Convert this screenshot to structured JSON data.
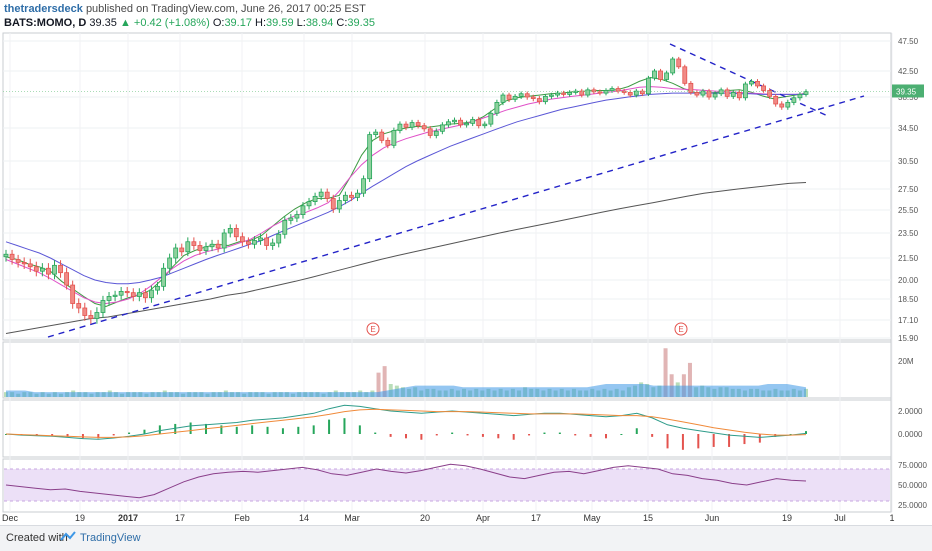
{
  "header": {
    "user": "thetradersdeck",
    "published": "published on TradingView.com, June 26, 2017 00:25 EST",
    "symbol": "BATS:MOMO, D",
    "last": "39.35",
    "change": "+0.42 (+1.08%)",
    "o_label": "O:",
    "o_val": "39.17",
    "h_label": "H:",
    "h_val": "39.59",
    "l_label": "L:",
    "l_val": "38.94",
    "c_label": "C:",
    "c_val": "39.35"
  },
  "footer": {
    "created": "Created with",
    "brand": "TradingView"
  },
  "colors": {
    "up": "#26a65b",
    "down": "#e4534e",
    "sma_fast": "#3d9a42",
    "sma_mid": "#e050c8",
    "sma_slow": "#5b57d6",
    "sma_long": "#555555",
    "trend": "#2323c8",
    "vol_bar": "#a8d5a8",
    "vol_bar_down": "#d9a3a3",
    "vol_ma": "#3d97e6",
    "macd": "#2e9c8a",
    "signal": "#f08a3a",
    "rsi": "#8a3f8a",
    "rsi_band": "#ece0f7"
  },
  "chart_data": {
    "type": "line",
    "title": "",
    "price_axis": {
      "ticks": [
        "47.50",
        "42.50",
        "38.50",
        "34.50",
        "30.50",
        "27.50",
        "25.50",
        "23.50",
        "21.50",
        "20.00",
        "18.50",
        "17.10",
        "15.90"
      ],
      "ylim": [
        15.9,
        47.5
      ],
      "last_label": "39.35"
    },
    "x_ticks": [
      "Dec",
      "19",
      "2017",
      "17",
      "Feb",
      "14",
      "Mar",
      "20",
      "Apr",
      "17",
      "May",
      "15",
      "Jun",
      "19",
      "Jul",
      "1"
    ],
    "price": [
      21.8,
      21.4,
      21.2,
      21.1,
      20.9,
      20.6,
      20.8,
      20.4,
      21.0,
      20.5,
      19.6,
      18.2,
      17.9,
      17.4,
      17.2,
      17.6,
      18.4,
      18.7,
      18.8,
      19.1,
      19.0,
      18.7,
      19.0,
      18.6,
      19.2,
      19.5,
      20.8,
      21.5,
      22.3,
      22.0,
      22.8,
      22.5,
      22.1,
      22.4,
      22.6,
      22.3,
      23.5,
      23.9,
      23.2,
      22.8,
      22.6,
      22.9,
      23.1,
      22.5,
      22.7,
      23.4,
      24.6,
      24.8,
      25.1,
      25.9,
      26.3,
      26.8,
      27.2,
      26.6,
      25.6,
      26.4,
      26.9,
      26.7,
      27.1,
      28.6,
      33.7,
      34.0,
      33.0,
      32.4,
      34.2,
      35.0,
      34.6,
      35.2,
      34.8,
      34.4,
      33.6,
      34.1,
      34.9,
      35.3,
      35.5,
      34.9,
      35.1,
      35.6,
      34.8,
      35.0,
      36.4,
      37.8,
      38.8,
      38.2,
      38.6,
      39.0,
      38.5,
      38.3,
      37.9,
      38.6,
      38.8,
      39.1,
      38.9,
      39.2,
      39.4,
      38.8,
      39.6,
      39.3,
      39.1,
      39.5,
      39.8,
      39.4,
      39.2,
      38.8,
      39.4,
      39.0,
      41.4,
      42.5,
      41.2,
      42.2,
      44.5,
      43.2,
      40.6,
      39.2,
      38.8,
      39.4,
      38.5,
      39.0,
      39.6,
      38.6,
      39.2,
      38.4,
      40.5,
      40.9,
      40.2,
      39.5,
      38.6,
      37.6,
      37.2,
      37.8,
      38.4,
      38.9,
      39.35
    ],
    "series": [
      {
        "values": [
          21.6,
          21.4,
          21.1,
          20.9,
          20.6,
          19.9,
          19.3,
          18.7,
          18.2,
          18.0,
          18.3,
          18.6,
          18.8,
          19.2,
          20.0,
          20.9,
          21.7,
          22.1,
          22.4,
          22.6,
          22.5,
          22.8,
          22.9,
          23.3,
          24.1,
          24.9,
          25.6,
          26.2,
          26.6,
          26.6,
          26.9,
          28.8,
          31.2,
          33.0,
          33.8,
          34.2,
          34.5,
          34.7,
          34.6,
          34.8,
          35.0,
          35.1,
          35.3,
          36.0,
          37.0,
          38.0,
          38.4,
          38.6,
          38.8,
          39.0,
          39.1,
          39.3,
          39.4,
          39.5,
          39.5,
          39.6,
          40.1,
          40.9,
          41.5,
          41.2,
          40.6,
          39.8,
          39.2,
          39.1,
          39.2,
          39.5,
          39.6,
          39.3,
          38.7,
          38.3,
          38.5,
          38.8,
          39.1
        ]
      },
      {
        "values": [
          21.4,
          21.1,
          20.8,
          20.5,
          20.1,
          19.6,
          19.1,
          18.6,
          18.3,
          18.2,
          18.3,
          18.5,
          18.9,
          19.5,
          20.2,
          20.8,
          21.3,
          21.7,
          22.0,
          22.2,
          22.4,
          22.7,
          23.0,
          23.5,
          24.1,
          24.6,
          25.0,
          25.3,
          25.7,
          26.2,
          27.3,
          28.8,
          30.1,
          31.2,
          32.1,
          32.7,
          33.2,
          33.6,
          34.0,
          34.3,
          34.6,
          34.9,
          35.3,
          35.8,
          36.3,
          36.8,
          37.2,
          37.6,
          37.9,
          38.2,
          38.4,
          38.6,
          38.8,
          39.0,
          39.2,
          39.4,
          39.7,
          40.0,
          40.1,
          40.0,
          39.8,
          39.7,
          39.6,
          39.5,
          39.4,
          39.3,
          39.2,
          39.1,
          39.0,
          38.9,
          38.9,
          38.9,
          39.0
        ]
      },
      {
        "values": [
          22.8,
          22.5,
          22.2,
          21.9,
          21.5,
          21.1,
          20.7,
          20.3,
          20.0,
          19.8,
          19.7,
          19.7,
          19.8,
          20.0,
          20.2,
          20.5,
          20.8,
          21.1,
          21.4,
          21.7,
          22.0,
          22.3,
          22.6,
          22.9,
          23.3,
          23.7,
          24.1,
          24.5,
          24.9,
          25.3,
          25.8,
          26.4,
          27.1,
          27.8,
          28.5,
          29.2,
          29.9,
          30.5,
          31.1,
          31.7,
          32.3,
          32.8,
          33.3,
          33.8,
          34.3,
          34.8,
          35.3,
          35.7,
          36.1,
          36.5,
          36.9,
          37.2,
          37.5,
          37.8,
          38.1,
          38.3,
          38.5,
          38.7,
          38.9,
          39.0,
          39.1,
          39.1,
          39.1,
          39.1,
          39.1,
          39.1,
          39.0,
          39.0,
          38.9,
          38.9,
          38.9,
          38.9,
          38.9
        ]
      },
      {
        "values": [
          16.2,
          16.4,
          16.6,
          16.8,
          17.0,
          17.2,
          17.3,
          17.5,
          17.7,
          17.9,
          18.1,
          18.3,
          18.5,
          18.8,
          19.0,
          19.3,
          19.6,
          19.9,
          20.2,
          20.5,
          20.8,
          21.1,
          21.4,
          21.7,
          22.0,
          22.3,
          22.6,
          22.9,
          23.2,
          23.5,
          23.8,
          24.1,
          24.4,
          24.7,
          25.0,
          25.3,
          25.6,
          25.9,
          26.2,
          26.5,
          26.8,
          27.1,
          27.3,
          27.5,
          27.7,
          27.9,
          28.1,
          28.2
        ]
      }
    ],
    "volume": {
      "label": "20M",
      "values": [
        3,
        3,
        2,
        3,
        3,
        2,
        3,
        2,
        3,
        2,
        3,
        4,
        3,
        3,
        2,
        3,
        3,
        4,
        3,
        2,
        3,
        3,
        3,
        2,
        3,
        3,
        4,
        3,
        3,
        2,
        3,
        3,
        3,
        2,
        3,
        3,
        4,
        3,
        3,
        2,
        3,
        3,
        3,
        2,
        3,
        3,
        3,
        2,
        3,
        3,
        3,
        3,
        2,
        3,
        4,
        3,
        3,
        3,
        4,
        3,
        4,
        15,
        19,
        8,
        7,
        6,
        5,
        6,
        4,
        5,
        5,
        4,
        4,
        5,
        4,
        5,
        4,
        5,
        4,
        5,
        4,
        5,
        4,
        5,
        4,
        6,
        5,
        5,
        4,
        5,
        4,
        5,
        4,
        5,
        4,
        4,
        5,
        4,
        5,
        4,
        5,
        4,
        6,
        7,
        9,
        8,
        6,
        7,
        30,
        14,
        9,
        14,
        21,
        6,
        7,
        6,
        5,
        6,
        6,
        5,
        5,
        4,
        5,
        5,
        4,
        4,
        5,
        4,
        4,
        5,
        4,
        5
      ],
      "ma": [
        4,
        4,
        4,
        3,
        3,
        3,
        3,
        3,
        3,
        3,
        3,
        3,
        3,
        3,
        3,
        3,
        3,
        3,
        3,
        3,
        3,
        3,
        3,
        3,
        3,
        3,
        3,
        3,
        3,
        3,
        3,
        3,
        3,
        3,
        3,
        3,
        3,
        3,
        3,
        3,
        4,
        5,
        6,
        7,
        7,
        7,
        7,
        7,
        6,
        6,
        6,
        6,
        6,
        6,
        6,
        6,
        6,
        6,
        6,
        6,
        6,
        6,
        7,
        8,
        8,
        8,
        8,
        8,
        7,
        7,
        7,
        7,
        7,
        7,
        7,
        7,
        7,
        7,
        7,
        7,
        8,
        8,
        8,
        7,
        6
      ]
    },
    "macd": {
      "ticks": [
        "2.0000",
        "0.0000"
      ],
      "macd": [
        0.0,
        -0.1,
        -0.15,
        -0.2,
        -0.3,
        -0.4,
        -0.45,
        -0.35,
        -0.2,
        0.0,
        0.3,
        0.5,
        0.7,
        0.8,
        0.9,
        1.0,
        1.2,
        1.3,
        1.4,
        1.6,
        1.8,
        2.2,
        2.5,
        2.4,
        2.2,
        2.0,
        1.9,
        1.8,
        1.9,
        2.0,
        1.9,
        1.8,
        1.7,
        1.6,
        1.7,
        1.8,
        1.8,
        1.7,
        1.6,
        1.5,
        1.6,
        1.8,
        1.4,
        0.8,
        0.5,
        0.3,
        0.1,
        -0.1,
        -0.2,
        -0.3,
        -0.2,
        -0.1,
        0.05
      ],
      "signal": [
        0.0,
        -0.05,
        -0.1,
        -0.15,
        -0.2,
        -0.25,
        -0.3,
        -0.3,
        -0.25,
        -0.15,
        0.0,
        0.15,
        0.3,
        0.45,
        0.6,
        0.75,
        0.9,
        1.05,
        1.2,
        1.35,
        1.5,
        1.7,
        1.95,
        2.1,
        2.15,
        2.1,
        2.05,
        2.0,
        1.95,
        1.95,
        1.95,
        1.9,
        1.85,
        1.8,
        1.75,
        1.75,
        1.75,
        1.75,
        1.7,
        1.65,
        1.6,
        1.6,
        1.5,
        1.3,
        1.05,
        0.8,
        0.55,
        0.35,
        0.15,
        0.0,
        -0.1,
        -0.1,
        -0.05
      ]
    },
    "rsi": {
      "ticks": [
        "75.0000",
        "50.0000",
        "25.0000"
      ],
      "band": [
        30,
        70
      ],
      "values": [
        50,
        48,
        46,
        44,
        45,
        42,
        40,
        38,
        36,
        34,
        38,
        46,
        54,
        60,
        64,
        66,
        67,
        66,
        68,
        70,
        72,
        69,
        64,
        62,
        66,
        70,
        67,
        65,
        68,
        72,
        76,
        74,
        70,
        65,
        60,
        58,
        62,
        66,
        67,
        64,
        68,
        72,
        74,
        72,
        70,
        64,
        62,
        58,
        56,
        52,
        50,
        54,
        58,
        56,
        55
      ]
    },
    "events": [
      "E",
      "E"
    ]
  }
}
